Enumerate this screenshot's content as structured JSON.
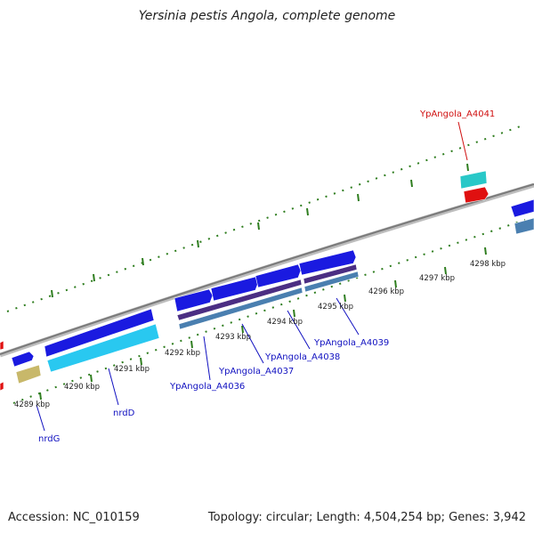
{
  "title": "Yersinia pestis Angola, complete genome",
  "footer": {
    "accession": "Accession: NC_010159",
    "topology": "Topology: circular; Length: 4,504,254 bp; Genes: 3,942"
  },
  "colors": {
    "backbone": "#8c8c8c",
    "tick": "#2e7d1e",
    "gene_blue": "#1a1ae0",
    "gene_cyan": "#29c8f0",
    "gene_purple": "#4b2e83",
    "gene_steel": "#4a7fb0",
    "gene_khaki": "#c8b86a",
    "gene_red": "#e01010",
    "gene_teal": "#29c8c8",
    "label_blue": "#1010c0",
    "label_red": "#d01010"
  },
  "ticks": [
    {
      "label": "4289 kbp"
    },
    {
      "label": "4290 kbp"
    },
    {
      "label": "4291 kbp"
    },
    {
      "label": "4292 kbp"
    },
    {
      "label": "4293 kbp"
    },
    {
      "label": "4294 kbp"
    },
    {
      "label": "4295 kbp"
    },
    {
      "label": "4296 kbp"
    },
    {
      "label": "4297 kbp"
    },
    {
      "label": "4298 kbp"
    }
  ],
  "gene_labels": [
    {
      "text": "nrdG",
      "color_key": "label_blue"
    },
    {
      "text": "nrdD",
      "color_key": "label_blue"
    },
    {
      "text": "YpAngola_A4036",
      "color_key": "label_blue"
    },
    {
      "text": "YpAngola_A4037",
      "color_key": "label_blue"
    },
    {
      "text": "YpAngola_A4038",
      "color_key": "label_blue"
    },
    {
      "text": "YpAngola_A4039",
      "color_key": "label_blue"
    },
    {
      "text": "YpAngola_A4041",
      "color_key": "label_red"
    }
  ]
}
